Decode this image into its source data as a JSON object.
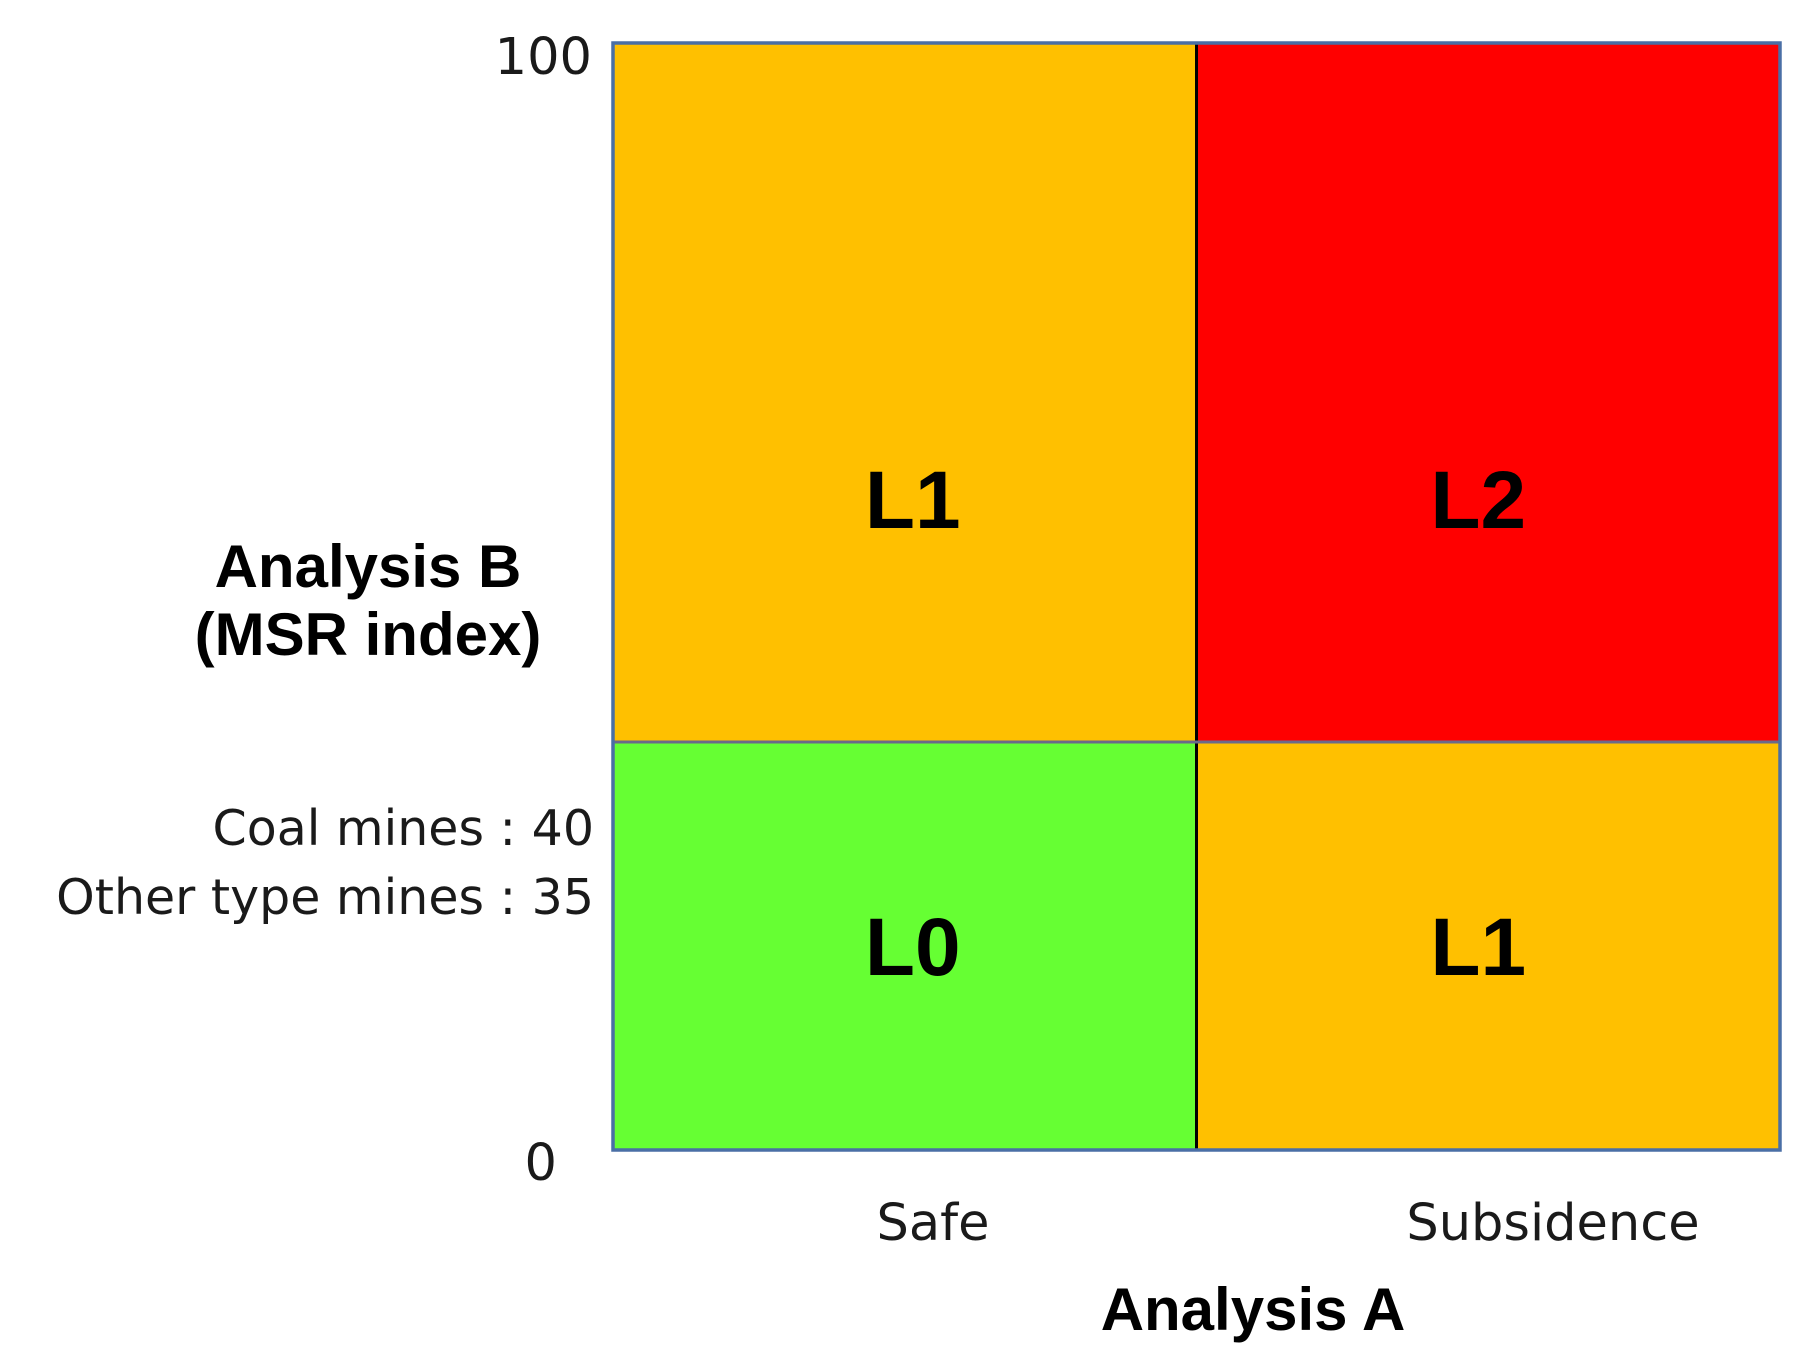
{
  "chart_data": {
    "type": "risk-matrix",
    "x_axis": {
      "title": "Analysis A",
      "categories": [
        "Safe",
        "Subsidence"
      ]
    },
    "y_axis": {
      "title_line1": "Analysis B",
      "title_line2": "(MSR index)",
      "min": 0,
      "max": 100,
      "min_label": "0",
      "max_label": "100",
      "threshold": 40,
      "threshold_labels": [
        "Coal mines : 40",
        "Other type mines : 35"
      ]
    },
    "cells": [
      {
        "x": "Safe",
        "band": "upper",
        "label": "L1",
        "color": "#FFC000"
      },
      {
        "x": "Subsidence",
        "band": "upper",
        "label": "L2",
        "color": "#FF0000"
      },
      {
        "x": "Safe",
        "band": "lower",
        "label": "L0",
        "color": "#66FF33"
      },
      {
        "x": "Subsidence",
        "band": "lower",
        "label": "L1",
        "color": "#FFC000"
      }
    ],
    "frame_color": "#4A6FA5",
    "divider_color": "#000000"
  }
}
